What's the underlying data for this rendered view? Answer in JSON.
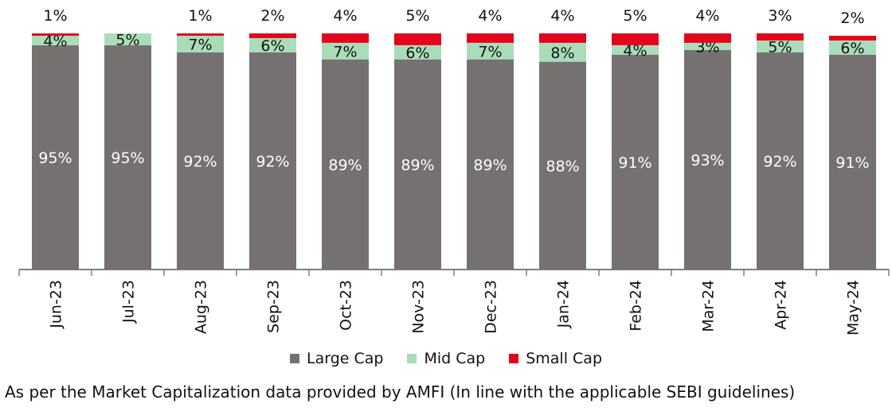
{
  "chart_data": {
    "type": "bar",
    "stacked": true,
    "categories": [
      "Jun-23",
      "Jul-23",
      "Aug-23",
      "Sep-23",
      "Oct-23",
      "Nov-23",
      "Dec-23",
      "Jan-24",
      "Feb-24",
      "Mar-24",
      "Apr-24",
      "May-24"
    ],
    "series": [
      {
        "name": "Large Cap",
        "color": "#767171",
        "values": [
          95,
          95,
          92,
          92,
          89,
          89,
          89,
          88,
          91,
          93,
          92,
          91
        ],
        "labels": [
          "95%",
          "95%",
          "92%",
          "92%",
          "89%",
          "89%",
          "89%",
          "88%",
          "91%",
          "93%",
          "92%",
          "91%"
        ]
      },
      {
        "name": "Mid Cap",
        "color": "#A9DDB9",
        "values": [
          4,
          5,
          7,
          6,
          7,
          6,
          7,
          8,
          4,
          3,
          5,
          6
        ],
        "labels": [
          "4%",
          "5%",
          "7%",
          "6%",
          "7%",
          "6%",
          "7%",
          "8%",
          "4%",
          "3%",
          "5%",
          "6%"
        ]
      },
      {
        "name": "Small Cap",
        "color": "#E3051B",
        "values": [
          1,
          0,
          1,
          2,
          4,
          5,
          4,
          4,
          5,
          4,
          3,
          2
        ],
        "labels": [
          "1%",
          "",
          "1%",
          "2%",
          "4%",
          "5%",
          "4%",
          "4%",
          "5%",
          "4%",
          "3%",
          "2%"
        ]
      }
    ],
    "ylim": [
      0,
      100
    ],
    "grid": false,
    "legend_position": "bottom"
  },
  "note": "As per the Market Capitalization data provided by AMFI (In line with the applicable SEBI guidelines)"
}
